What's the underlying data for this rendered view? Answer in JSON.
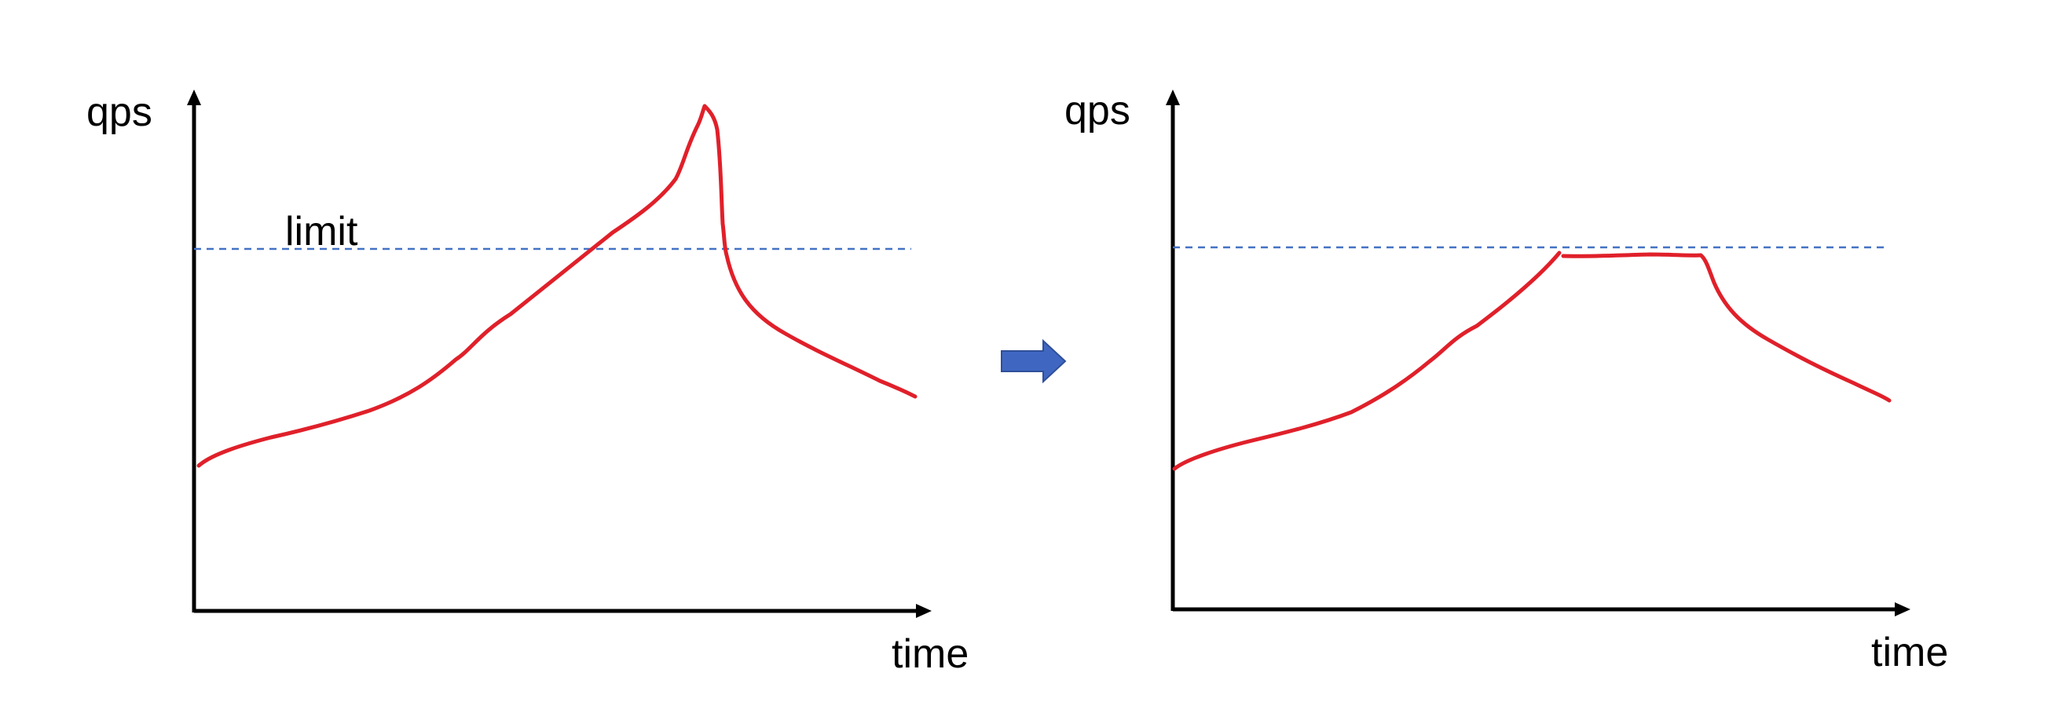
{
  "colors": {
    "axis": "#000000",
    "curve": "#e0202a",
    "limit_line": "#4472c4",
    "arrow_fill": "#3f67c2",
    "arrow_stroke": "#2f4f98"
  },
  "left_panel": {
    "y_axis_label": "qps",
    "x_axis_label": "time",
    "limit_label": "limit",
    "description": "qps spikes above the limit then falls"
  },
  "right_panel": {
    "y_axis_label": "qps",
    "x_axis_label": "time",
    "description": "qps capped at the limit"
  },
  "transition_arrow": {
    "icon": "right-arrow-icon"
  }
}
